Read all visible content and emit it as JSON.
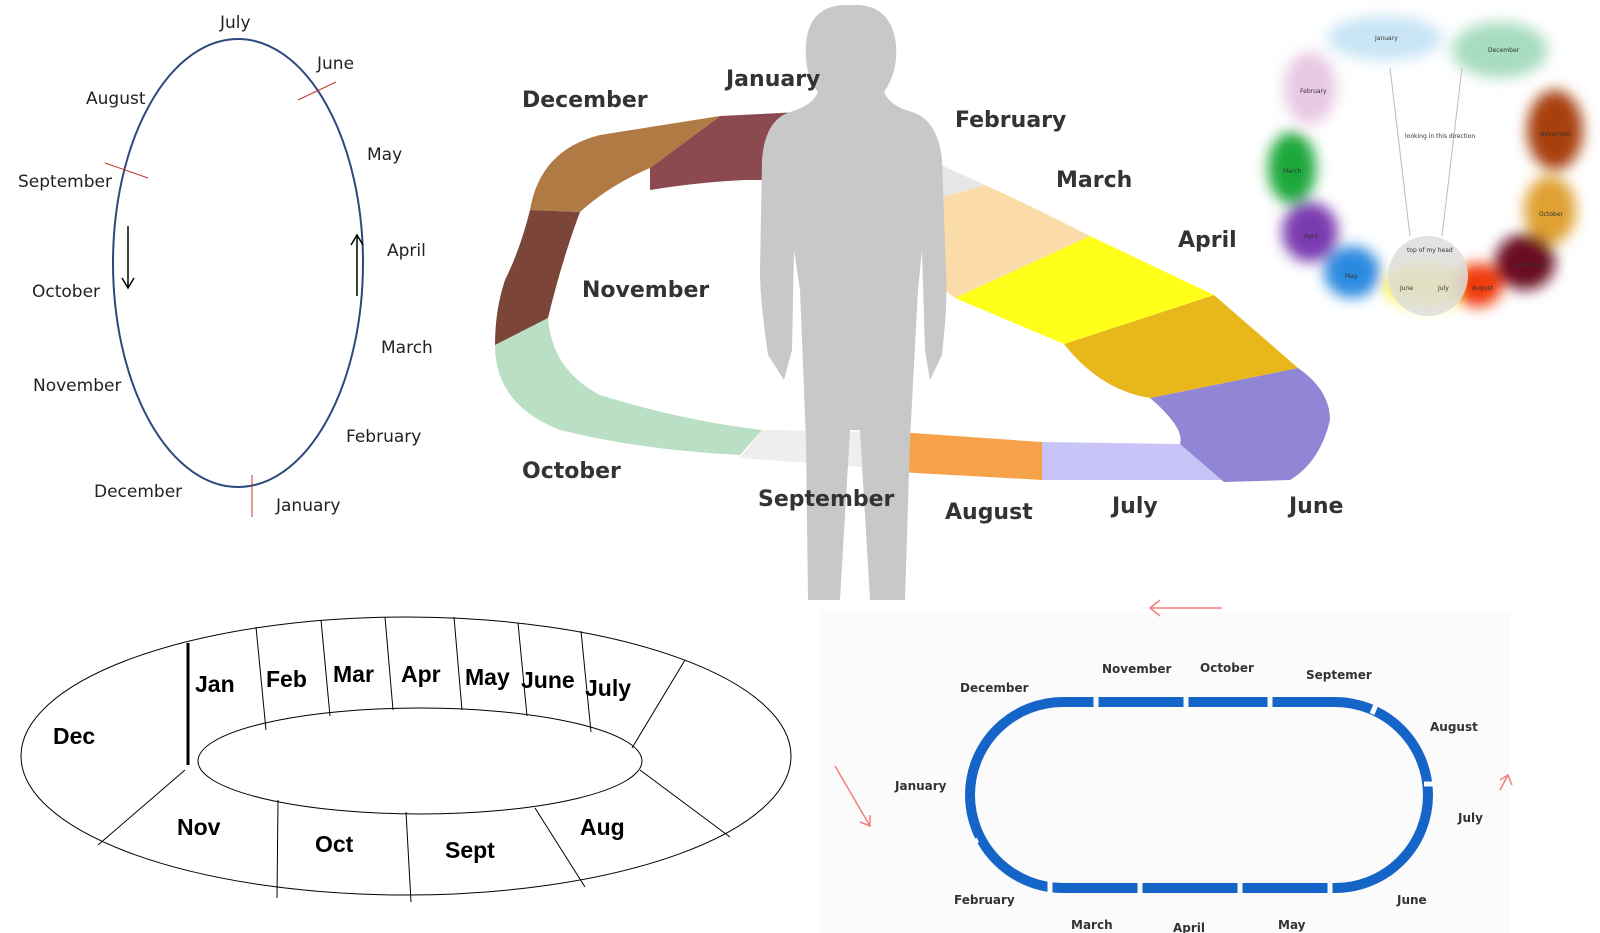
{
  "diagram1": {
    "months": [
      "July",
      "June",
      "May",
      "April",
      "March",
      "February",
      "January",
      "December",
      "November",
      "October",
      "September",
      "August"
    ],
    "colors": {
      "ellipse": "#2e4a7d",
      "ticks": "#c0392b",
      "arrows": "#000000"
    }
  },
  "diagram2": {
    "months": [
      "January",
      "February",
      "March",
      "April",
      "June",
      "July",
      "August",
      "September",
      "October",
      "November",
      "December"
    ],
    "colors": {
      "December": "#b07a45",
      "January": "#8b4a50",
      "February": "#e6e6e6",
      "March": "#fbdba8",
      "April": "#ffff1a",
      "May": "#e8b71c",
      "June": "#9185d6",
      "July": "#c9c4f7",
      "August": "#f6a24a",
      "September": "#eeeeee",
      "October": "#b9dfc4",
      "November": "#7b4638",
      "figure": "#c8c8c8"
    }
  },
  "diagram3": {
    "inner_note": "looking in this direction",
    "head_label": "top of my head",
    "months": [
      "January",
      "December",
      "February",
      "November",
      "March",
      "October",
      "April",
      "September",
      "May",
      "June",
      "July",
      "August"
    ],
    "colors": {
      "January": "#c8e4f5",
      "December": "#a8dcc0",
      "February": "#e8c8e4",
      "November": "#a8400c",
      "March": "#1fa83a",
      "October": "#e0a030",
      "April": "#7a3ab0",
      "September": "#6a0f20",
      "May": "#2a8ae0",
      "June": "#f5f030",
      "July": "#f5f030",
      "August": "#f03a0a",
      "head": "#dddddd"
    }
  },
  "diagram4": {
    "months": [
      "Dec",
      "Jan",
      "Feb",
      "Mar",
      "Apr",
      "May",
      "June",
      "July",
      "Nov",
      "Oct",
      "Sept",
      "Aug"
    ]
  },
  "diagram5": {
    "months": [
      "November",
      "October",
      "Septemer",
      "December",
      "August",
      "January",
      "July",
      "February",
      "June",
      "March",
      "April",
      "May"
    ],
    "colors": {
      "track": "#1565c8",
      "arrows": "#f08080"
    }
  }
}
